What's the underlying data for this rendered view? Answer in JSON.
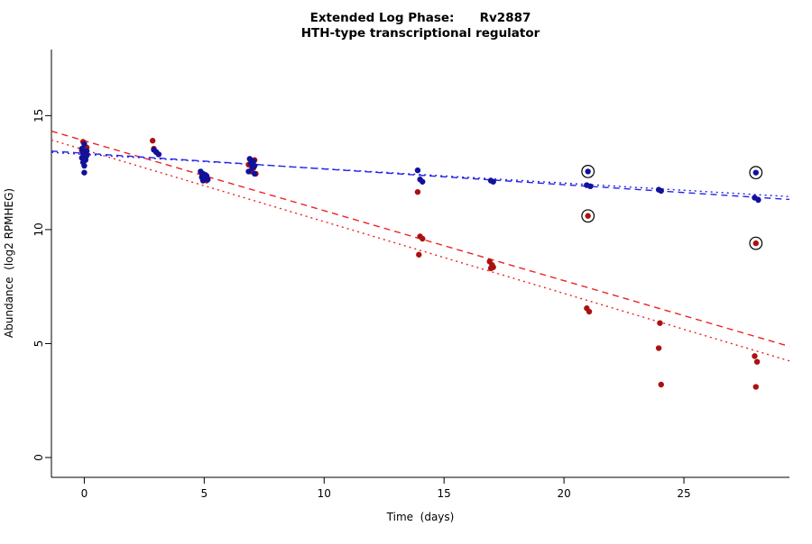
{
  "page": {
    "background_color": "#ffffff"
  },
  "chart_data": {
    "type": "scatter",
    "title": "Extended Log Phase:      Rv2887",
    "subtitle": "HTH-type transcriptional regulator",
    "xlabel": "Time  (days)",
    "ylabel": "Abundance  (log2 RPMHEG)",
    "xlim": [
      -1.37,
      29.4
    ],
    "ylim": [
      -0.87,
      17.9
    ],
    "xticks": [
      0,
      5,
      10,
      15,
      20,
      25
    ],
    "yticks": [
      0,
      5,
      10,
      15
    ],
    "grid": false,
    "legend": "none",
    "axis_color": "#000000",
    "series": [
      {
        "name": "red-series",
        "point_color": "#aa1111",
        "points": [
          [
            -0.05,
            13.85
          ],
          [
            0.1,
            13.6
          ],
          [
            0.0,
            13.5
          ],
          [
            -0.1,
            13.45
          ],
          [
            0.05,
            13.4
          ],
          [
            0.0,
            13.3
          ],
          [
            -0.05,
            13.2
          ],
          [
            0.05,
            13.1
          ],
          [
            2.85,
            13.9
          ],
          [
            2.9,
            13.55
          ],
          [
            3.0,
            13.4
          ],
          [
            3.1,
            13.3
          ],
          [
            4.9,
            12.45
          ],
          [
            5.05,
            12.35
          ],
          [
            4.95,
            12.2
          ],
          [
            5.1,
            12.15
          ],
          [
            6.9,
            13.1
          ],
          [
            7.1,
            13.05
          ],
          [
            7.0,
            12.95
          ],
          [
            6.85,
            12.85
          ],
          [
            7.05,
            12.7
          ],
          [
            6.95,
            12.55
          ],
          [
            7.15,
            12.45
          ],
          [
            13.9,
            11.65
          ],
          [
            14.0,
            9.7
          ],
          [
            14.1,
            9.6
          ],
          [
            13.95,
            8.9
          ],
          [
            16.9,
            8.6
          ],
          [
            17.0,
            8.45
          ],
          [
            17.05,
            8.35
          ],
          [
            16.95,
            8.3
          ],
          [
            20.95,
            6.55
          ],
          [
            21.05,
            6.4
          ],
          [
            24.0,
            5.9
          ],
          [
            23.95,
            4.8
          ],
          [
            24.05,
            3.2
          ],
          [
            27.95,
            4.45
          ],
          [
            28.05,
            4.2
          ],
          [
            28.0,
            3.1
          ]
        ],
        "circled_points": [
          [
            21,
            10.6
          ],
          [
            28,
            9.4
          ]
        ]
      },
      {
        "name": "blue-series",
        "point_color": "#111199",
        "points": [
          [
            0.0,
            13.75
          ],
          [
            -0.1,
            13.55
          ],
          [
            0.1,
            13.45
          ],
          [
            0.05,
            13.4
          ],
          [
            -0.05,
            13.35
          ],
          [
            0.0,
            13.3
          ],
          [
            0.1,
            13.25
          ],
          [
            -0.1,
            13.15
          ],
          [
            0.05,
            13.05
          ],
          [
            -0.05,
            12.95
          ],
          [
            0.0,
            12.8
          ],
          [
            0.0,
            12.5
          ],
          [
            2.9,
            13.5
          ],
          [
            3.0,
            13.4
          ],
          [
            3.1,
            13.3
          ],
          [
            4.85,
            12.55
          ],
          [
            4.95,
            12.45
          ],
          [
            5.05,
            12.4
          ],
          [
            5.1,
            12.35
          ],
          [
            4.9,
            12.3
          ],
          [
            5.0,
            12.25
          ],
          [
            5.15,
            12.2
          ],
          [
            4.95,
            12.15
          ],
          [
            6.9,
            13.1
          ],
          [
            7.05,
            13.0
          ],
          [
            6.95,
            12.9
          ],
          [
            7.1,
            12.8
          ],
          [
            7.0,
            12.7
          ],
          [
            6.85,
            12.55
          ],
          [
            7.1,
            12.45
          ],
          [
            13.9,
            12.6
          ],
          [
            14.0,
            12.2
          ],
          [
            14.1,
            12.1
          ],
          [
            16.95,
            12.15
          ],
          [
            17.05,
            12.1
          ],
          [
            20.95,
            11.95
          ],
          [
            21.1,
            11.9
          ],
          [
            23.95,
            11.75
          ],
          [
            24.05,
            11.7
          ],
          [
            27.95,
            11.4
          ],
          [
            28.1,
            11.3
          ]
        ],
        "circled_points": [
          [
            21,
            12.55
          ],
          [
            28,
            12.5
          ]
        ]
      }
    ],
    "trend_lines": [
      {
        "series": "red-series",
        "color": "#ee2222",
        "style": "dashed",
        "intercept": 13.9,
        "slope": -0.307
      },
      {
        "series": "red-series",
        "color": "#ee2222",
        "style": "dotted",
        "intercept": 13.5,
        "slope": -0.315
      },
      {
        "series": "blue-series",
        "color": "#2222ee",
        "style": "dashed",
        "intercept": 13.35,
        "slope": -0.069
      },
      {
        "series": "blue-series",
        "color": "#2222ee",
        "style": "dotted",
        "intercept": 13.3,
        "slope": -0.063
      }
    ]
  }
}
